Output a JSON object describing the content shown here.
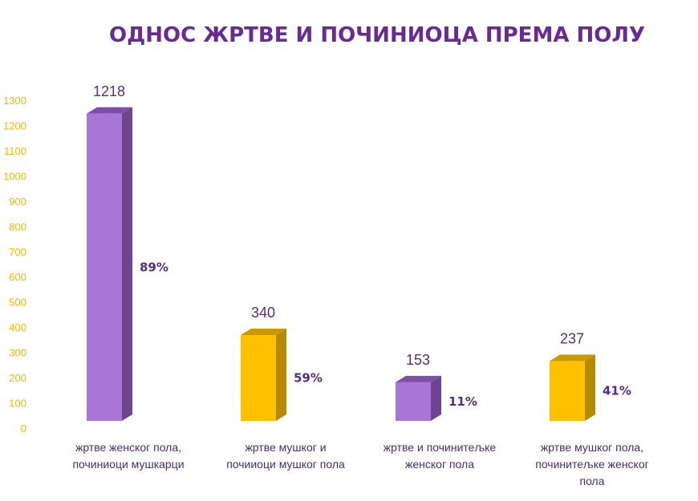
{
  "chart_data": {
    "type": "bar",
    "title": "ОДНОС ЖРТВЕ И ПОЧИНИОЦА ПРЕМА ПОЛУ",
    "xlabel": "",
    "ylabel": "",
    "ylim": [
      0,
      1300
    ],
    "yticks": [
      0,
      100,
      200,
      300,
      400,
      500,
      600,
      700,
      800,
      900,
      1000,
      1100,
      1200,
      1300
    ],
    "grid": false,
    "legend": "none",
    "categories": [
      [
        "жртве женског пола,",
        "починиоци мушкарци"
      ],
      [
        "жртве мушког и",
        "почииоци мушког пола"
      ],
      [
        "жртве и починитељке",
        "женског пола"
      ],
      [
        "жртве мушког пола,",
        "починитељке женског",
        "пола"
      ]
    ],
    "values": [
      1218,
      340,
      153,
      237
    ],
    "value_labels": [
      "1218",
      "340",
      "153",
      "237"
    ],
    "percent_labels": [
      "89%",
      "59%",
      "11%",
      "41%"
    ],
    "bar_colors": [
      "#a876d6",
      "#ffc000",
      "#a876d6",
      "#ffc000"
    ],
    "bar_side_colors": [
      "#6e4491",
      "#b58a00",
      "#6e4491",
      "#b58a00"
    ],
    "bar_top_colors": [
      "#7d4fa6",
      "#c99a00",
      "#7d4fa6",
      "#c99a00"
    ]
  }
}
